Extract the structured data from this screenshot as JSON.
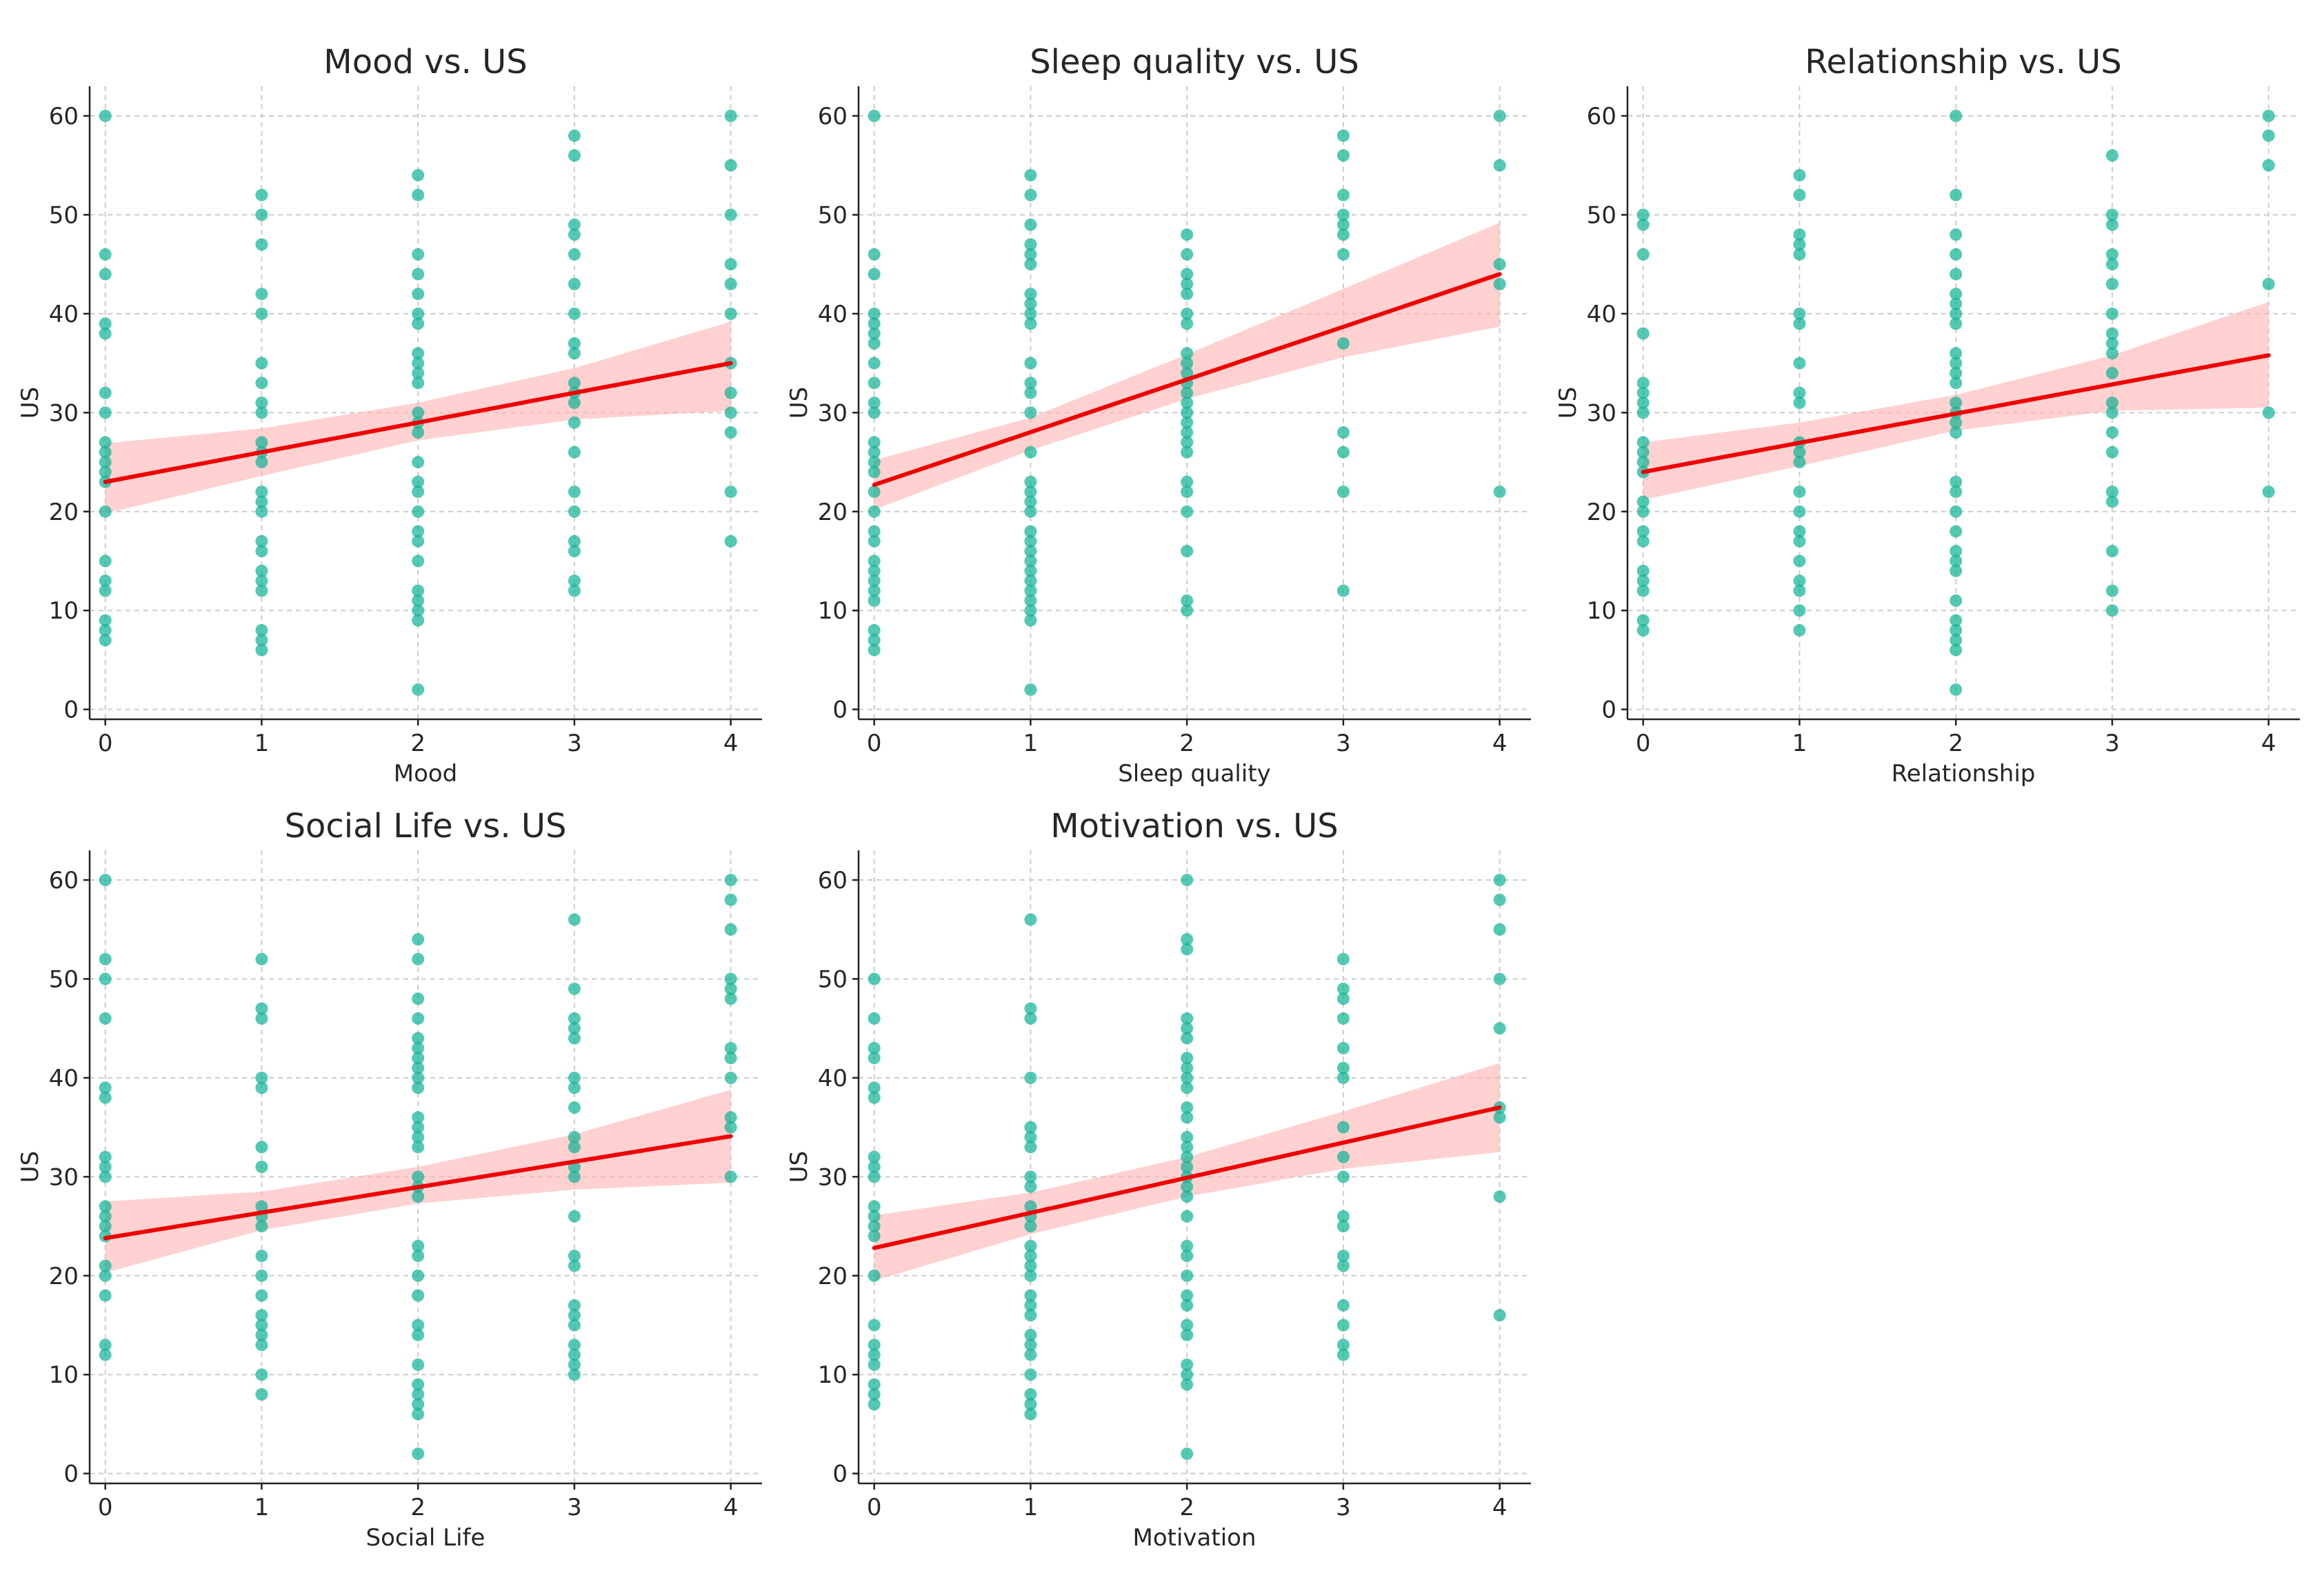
{
  "chart_data": [
    {
      "type": "scatter",
      "title": "Mood vs. US",
      "xlabel": "Mood",
      "ylabel": "US",
      "xlim": [
        -0.1,
        4.2
      ],
      "ylim": [
        -1,
        63
      ],
      "xticks": [
        0,
        1,
        2,
        3,
        4
      ],
      "yticks": [
        0,
        10,
        20,
        30,
        40,
        50,
        60
      ],
      "grid": true,
      "point_color": "#12b496",
      "line_color": "#ee0000",
      "band_color": "#ffb3b3",
      "regression": {
        "x": [
          0,
          4
        ],
        "y": [
          23,
          35
        ]
      },
      "confidence_band": {
        "x": [
          0,
          1,
          2,
          3,
          4
        ],
        "lower": [
          19.8,
          23.6,
          27.2,
          29.3,
          30.2
        ],
        "upper": [
          26.9,
          28.4,
          31.0,
          34.5,
          39.2
        ]
      },
      "points": [
        {
          "x": 0,
          "y": [
            60,
            46,
            44,
            39,
            38,
            32,
            30,
            27,
            26,
            25,
            24,
            23,
            20,
            15,
            13,
            12,
            9,
            8,
            7
          ]
        },
        {
          "x": 1,
          "y": [
            52,
            50,
            47,
            42,
            40,
            35,
            33,
            31,
            30,
            27,
            26,
            25,
            22,
            21,
            20,
            17,
            16,
            14,
            13,
            12,
            8,
            7,
            6
          ]
        },
        {
          "x": 2,
          "y": [
            54,
            52,
            46,
            44,
            42,
            40,
            39,
            36,
            35,
            34,
            33,
            30,
            29,
            28,
            25,
            23,
            22,
            20,
            18,
            17,
            15,
            12,
            11,
            10,
            9,
            2
          ]
        },
        {
          "x": 3,
          "y": [
            58,
            56,
            49,
            48,
            46,
            43,
            40,
            37,
            36,
            33,
            32,
            31,
            29,
            26,
            22,
            20,
            17,
            16,
            13,
            12
          ]
        },
        {
          "x": 4,
          "y": [
            60,
            55,
            50,
            45,
            43,
            40,
            35,
            32,
            30,
            28,
            22,
            17
          ]
        }
      ]
    },
    {
      "type": "scatter",
      "title": "Sleep quality vs. US",
      "xlabel": "Sleep quality",
      "ylabel": "US",
      "xlim": [
        -0.1,
        4.2
      ],
      "ylim": [
        -1,
        63
      ],
      "xticks": [
        0,
        1,
        2,
        3,
        4
      ],
      "yticks": [
        0,
        10,
        20,
        30,
        40,
        50,
        60
      ],
      "grid": true,
      "point_color": "#12b496",
      "line_color": "#ee0000",
      "band_color": "#ffb3b3",
      "regression": {
        "x": [
          0,
          4
        ],
        "y": [
          22.7,
          44.0
        ]
      },
      "confidence_band": {
        "x": [
          0,
          1,
          2,
          3,
          4
        ],
        "lower": [
          20.2,
          26.2,
          31.4,
          35.6,
          38.7
        ],
        "upper": [
          25.2,
          29.5,
          35.9,
          42.5,
          49.2
        ]
      },
      "points": [
        {
          "x": 0,
          "y": [
            60,
            46,
            44,
            40,
            39,
            38,
            37,
            35,
            33,
            31,
            30,
            27,
            26,
            25,
            24,
            22,
            20,
            18,
            17,
            15,
            14,
            13,
            12,
            11,
            8,
            7,
            6
          ]
        },
        {
          "x": 1,
          "y": [
            54,
            52,
            49,
            47,
            46,
            45,
            42,
            41,
            40,
            39,
            35,
            33,
            32,
            30,
            26,
            23,
            22,
            21,
            20,
            18,
            17,
            16,
            15,
            14,
            13,
            12,
            11,
            10,
            9,
            2
          ]
        },
        {
          "x": 2,
          "y": [
            48,
            46,
            44,
            43,
            42,
            40,
            39,
            36,
            35,
            34,
            33,
            32,
            31,
            30,
            29,
            28,
            27,
            26,
            23,
            22,
            20,
            16,
            11,
            10
          ]
        },
        {
          "x": 3,
          "y": [
            58,
            56,
            52,
            50,
            49,
            48,
            46,
            37,
            28,
            26,
            22,
            12
          ]
        },
        {
          "x": 4,
          "y": [
            60,
            55,
            45,
            43,
            22
          ]
        }
      ]
    },
    {
      "type": "scatter",
      "title": "Relationship vs. US",
      "xlabel": "Relationship",
      "ylabel": "US",
      "xlim": [
        -0.1,
        4.2
      ],
      "ylim": [
        -1,
        63
      ],
      "xticks": [
        0,
        1,
        2,
        3,
        4
      ],
      "yticks": [
        0,
        10,
        20,
        30,
        40,
        50,
        60
      ],
      "grid": true,
      "point_color": "#12b496",
      "line_color": "#ee0000",
      "band_color": "#ffb3b3",
      "regression": {
        "x": [
          0,
          4
        ],
        "y": [
          24.0,
          35.8
        ]
      },
      "confidence_band": {
        "x": [
          0,
          1,
          2,
          3,
          4
        ],
        "lower": [
          21.2,
          24.6,
          28.2,
          30.2,
          30.5
        ],
        "upper": [
          27.0,
          29.0,
          31.8,
          35.8,
          41.2
        ]
      },
      "points": [
        {
          "x": 0,
          "y": [
            50,
            49,
            46,
            38,
            33,
            32,
            31,
            30,
            27,
            26,
            25,
            24,
            21,
            20,
            18,
            17,
            14,
            13,
            12,
            9,
            8
          ]
        },
        {
          "x": 1,
          "y": [
            54,
            52,
            48,
            47,
            46,
            40,
            39,
            35,
            32,
            31,
            27,
            26,
            25,
            22,
            20,
            18,
            17,
            15,
            13,
            12,
            10,
            8
          ]
        },
        {
          "x": 2,
          "y": [
            60,
            52,
            48,
            46,
            44,
            42,
            41,
            40,
            39,
            36,
            35,
            34,
            33,
            31,
            30,
            29,
            28,
            23,
            22,
            20,
            18,
            16,
            15,
            14,
            11,
            9,
            8,
            7,
            6,
            2
          ]
        },
        {
          "x": 3,
          "y": [
            56,
            50,
            49,
            46,
            45,
            43,
            40,
            38,
            37,
            36,
            34,
            31,
            30,
            28,
            26,
            22,
            21,
            16,
            12,
            10
          ]
        },
        {
          "x": 4,
          "y": [
            60,
            58,
            55,
            43,
            30,
            22
          ]
        }
      ]
    },
    {
      "type": "scatter",
      "title": "Social Life vs. US",
      "xlabel": "Social Life",
      "ylabel": "US",
      "xlim": [
        -0.1,
        4.2
      ],
      "ylim": [
        -1,
        63
      ],
      "xticks": [
        0,
        1,
        2,
        3,
        4
      ],
      "yticks": [
        0,
        10,
        20,
        30,
        40,
        50,
        60
      ],
      "grid": true,
      "point_color": "#12b496",
      "line_color": "#ee0000",
      "band_color": "#ffb3b3",
      "regression": {
        "x": [
          0,
          4
        ],
        "y": [
          23.8,
          34.1
        ]
      },
      "confidence_band": {
        "x": [
          0,
          1,
          2,
          3,
          4
        ],
        "lower": [
          20.3,
          24.6,
          27.3,
          28.7,
          29.4
        ],
        "upper": [
          27.5,
          28.5,
          31.0,
          34.3,
          38.8
        ]
      },
      "points": [
        {
          "x": 0,
          "y": [
            60,
            52,
            50,
            46,
            39,
            38,
            32,
            31,
            30,
            27,
            26,
            25,
            24,
            21,
            20,
            18,
            13,
            12
          ]
        },
        {
          "x": 1,
          "y": [
            52,
            47,
            46,
            40,
            39,
            33,
            31,
            27,
            26,
            25,
            22,
            20,
            18,
            16,
            15,
            14,
            13,
            10,
            8
          ]
        },
        {
          "x": 2,
          "y": [
            54,
            52,
            48,
            46,
            44,
            43,
            42,
            41,
            40,
            39,
            36,
            35,
            34,
            33,
            30,
            29,
            28,
            23,
            22,
            20,
            18,
            15,
            14,
            11,
            9,
            8,
            7,
            6,
            2
          ]
        },
        {
          "x": 3,
          "y": [
            56,
            49,
            46,
            45,
            44,
            40,
            39,
            37,
            34,
            33,
            31,
            30,
            26,
            22,
            21,
            17,
            16,
            15,
            13,
            12,
            11,
            10
          ]
        },
        {
          "x": 4,
          "y": [
            60,
            58,
            55,
            50,
            49,
            48,
            43,
            42,
            40,
            36,
            35,
            30
          ]
        }
      ]
    },
    {
      "type": "scatter",
      "title": "Motivation vs. US",
      "xlabel": "Motivation",
      "ylabel": "US",
      "xlim": [
        -0.1,
        4.2
      ],
      "ylim": [
        -1,
        63
      ],
      "xticks": [
        0,
        1,
        2,
        3,
        4
      ],
      "yticks": [
        0,
        10,
        20,
        30,
        40,
        50,
        60
      ],
      "grid": true,
      "point_color": "#12b496",
      "line_color": "#ee0000",
      "band_color": "#ffb3b3",
      "regression": {
        "x": [
          0,
          4
        ],
        "y": [
          22.8,
          37.0
        ]
      },
      "confidence_band": {
        "x": [
          0,
          1,
          2,
          3,
          4
        ],
        "lower": [
          19.5,
          24.2,
          28.0,
          30.8,
          32.5
        ],
        "upper": [
          26.1,
          28.4,
          32.0,
          36.6,
          41.5
        ]
      },
      "points": [
        {
          "x": 0,
          "y": [
            50,
            46,
            43,
            42,
            39,
            38,
            32,
            31,
            30,
            27,
            26,
            25,
            24,
            20,
            15,
            13,
            12,
            11,
            9,
            8,
            7
          ]
        },
        {
          "x": 1,
          "y": [
            56,
            47,
            46,
            40,
            35,
            34,
            33,
            30,
            29,
            27,
            26,
            25,
            23,
            22,
            21,
            20,
            18,
            17,
            16,
            14,
            13,
            12,
            10,
            8,
            7,
            6
          ]
        },
        {
          "x": 2,
          "y": [
            60,
            54,
            53,
            46,
            45,
            44,
            42,
            41,
            40,
            39,
            37,
            36,
            34,
            33,
            32,
            31,
            30,
            29,
            28,
            26,
            23,
            22,
            20,
            18,
            17,
            15,
            14,
            11,
            10,
            9,
            2
          ]
        },
        {
          "x": 3,
          "y": [
            52,
            49,
            48,
            46,
            43,
            41,
            40,
            35,
            32,
            30,
            26,
            25,
            22,
            21,
            17,
            15,
            13,
            12
          ]
        },
        {
          "x": 4,
          "y": [
            60,
            58,
            55,
            50,
            45,
            37,
            36,
            28,
            16
          ]
        }
      ]
    }
  ]
}
